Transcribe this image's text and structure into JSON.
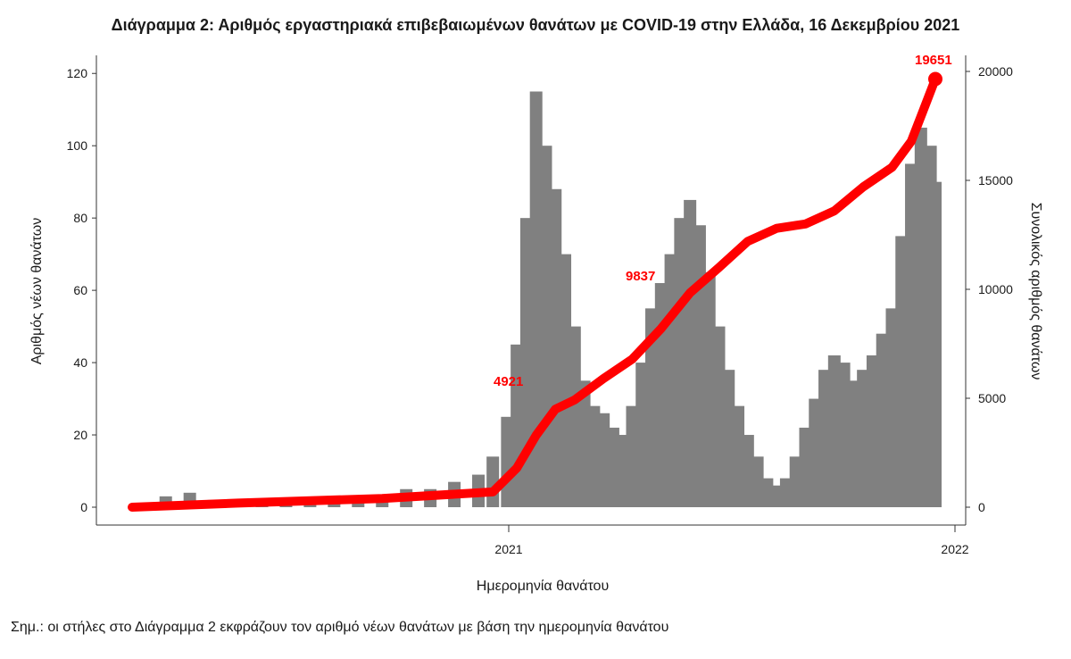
{
  "chart_data": {
    "type": "bar",
    "title": "Διάγραμμα 2: Αριθμός εργαστηριακά επιβεβαιωμένων θανάτων με COVID-19 στην Ελλάδα, 16 Δεκεμβρίου 2021",
    "xlabel": "Ημερομηνία θανάτου",
    "ylabel": "Αριθμός νέων θανάτων",
    "y2label": "Συνολικός αριθμός θανάτων",
    "footnote": "Σημ.: οι στήλες στο Διάγραμμα 2 εκφράζουν τον αριθμό νέων θανάτων με βάση την ημερομηνία θανάτου",
    "xticks": [
      "2021",
      "2022"
    ],
    "yticks": [
      "0",
      "20",
      "40",
      "60",
      "80",
      "100",
      "120"
    ],
    "y2ticks": [
      "0",
      "5000",
      "10000",
      "15000",
      "20000"
    ],
    "ylim": [
      0,
      125
    ],
    "y2lim": [
      0,
      20000
    ],
    "bar_color": "#808080",
    "line_color": "#ff0000",
    "series": [
      {
        "name": "new_deaths",
        "kind": "bar",
        "x_unit": "month",
        "points": [
          [
            3,
            1
          ],
          [
            3.5,
            3
          ],
          [
            4,
            4
          ],
          [
            4.5,
            2
          ],
          [
            5,
            1
          ],
          [
            5.5,
            1
          ],
          [
            6,
            1
          ],
          [
            6.5,
            1
          ],
          [
            7,
            1
          ],
          [
            7.5,
            2
          ],
          [
            8,
            3
          ],
          [
            8.5,
            5
          ],
          [
            9,
            5
          ],
          [
            9.5,
            7
          ],
          [
            10,
            9
          ],
          [
            10.3,
            14
          ],
          [
            10.6,
            25
          ],
          [
            10.8,
            45
          ],
          [
            11,
            80
          ],
          [
            11.2,
            115
          ],
          [
            11.4,
            100
          ],
          [
            11.6,
            88
          ],
          [
            11.8,
            70
          ],
          [
            12,
            50
          ],
          [
            12.2,
            35
          ],
          [
            12.4,
            28
          ],
          [
            12.6,
            26
          ],
          [
            12.8,
            22
          ],
          [
            13,
            20
          ],
          [
            13.2,
            28
          ],
          [
            13.4,
            40
          ],
          [
            13.6,
            55
          ],
          [
            13.8,
            62
          ],
          [
            14,
            70
          ],
          [
            14.2,
            80
          ],
          [
            14.4,
            85
          ],
          [
            14.6,
            78
          ],
          [
            14.8,
            65
          ],
          [
            15,
            50
          ],
          [
            15.2,
            38
          ],
          [
            15.4,
            28
          ],
          [
            15.6,
            20
          ],
          [
            15.8,
            14
          ],
          [
            16,
            8
          ],
          [
            16.2,
            6
          ],
          [
            16.4,
            8
          ],
          [
            16.6,
            14
          ],
          [
            16.8,
            22
          ],
          [
            17,
            30
          ],
          [
            17.2,
            38
          ],
          [
            17.4,
            42
          ],
          [
            17.6,
            40
          ],
          [
            17.8,
            35
          ],
          [
            18,
            38
          ],
          [
            18.2,
            42
          ],
          [
            18.4,
            48
          ],
          [
            18.6,
            55
          ],
          [
            18.8,
            75
          ],
          [
            19,
            95
          ],
          [
            19.2,
            105
          ],
          [
            19.4,
            100
          ],
          [
            19.5,
            90
          ]
        ]
      },
      {
        "name": "cumulative_deaths",
        "kind": "line",
        "x_unit": "month",
        "points": [
          [
            2.8,
            0
          ],
          [
            5,
            190
          ],
          [
            8,
            400
          ],
          [
            10.3,
            700
          ],
          [
            10.8,
            1800
          ],
          [
            11.2,
            3300
          ],
          [
            11.6,
            4500
          ],
          [
            12,
            4921
          ],
          [
            12.6,
            5900
          ],
          [
            13.2,
            6800
          ],
          [
            13.8,
            8200
          ],
          [
            14.4,
            9837
          ],
          [
            15,
            11000
          ],
          [
            15.6,
            12200
          ],
          [
            16.2,
            12800
          ],
          [
            16.8,
            13000
          ],
          [
            17.4,
            13600
          ],
          [
            18,
            14700
          ],
          [
            18.6,
            15600
          ],
          [
            19,
            16800
          ],
          [
            19.3,
            18500
          ],
          [
            19.5,
            19651
          ]
        ]
      }
    ],
    "annotations": [
      "4921",
      "9837",
      "19651"
    ]
  }
}
